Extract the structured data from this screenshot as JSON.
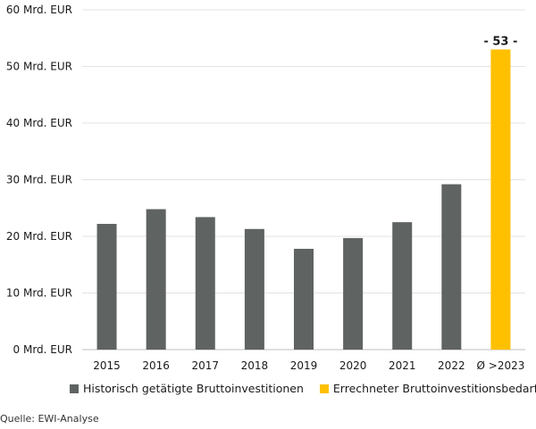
{
  "chart_data": {
    "type": "bar",
    "categories": [
      "2015",
      "2016",
      "2017",
      "2018",
      "2019",
      "2020",
      "2021",
      "2022",
      "Ø >2023"
    ],
    "series": [
      {
        "name": "Historisch getätigte Bruttoinvestitionen",
        "color": "#5f6361",
        "values": [
          22.2,
          24.8,
          23.4,
          21.3,
          17.8,
          19.7,
          22.5,
          29.2,
          null
        ]
      },
      {
        "name": "Errechneter Bruttoinvestitionsbedarf",
        "color": "#ffc000",
        "values": [
          null,
          null,
          null,
          null,
          null,
          null,
          null,
          null,
          53
        ]
      }
    ],
    "ylim": [
      0,
      60
    ],
    "yticks": [
      0,
      10,
      20,
      30,
      40,
      50,
      60
    ],
    "ytick_labels": [
      "0 Mrd. EUR",
      "10 Mrd. EUR",
      "20 Mrd. EUR",
      "30 Mrd. EUR",
      "40 Mrd. EUR",
      "50 Mrd. EUR",
      "60 Mrd. EUR"
    ],
    "annotations": [
      {
        "category": "Ø >2023",
        "text": "- 53 -"
      }
    ],
    "grid": true,
    "legend_position": "bottom",
    "title": "",
    "xlabel": "",
    "ylabel": ""
  },
  "legend": [
    {
      "label": "Historisch getätigte Bruttoinvestitionen",
      "color": "#5f6361"
    },
    {
      "label": "Errechneter Bruttoinvestitionsbedarf",
      "color": "#ffc000"
    }
  ],
  "source": "Quelle: EWI-Analyse"
}
